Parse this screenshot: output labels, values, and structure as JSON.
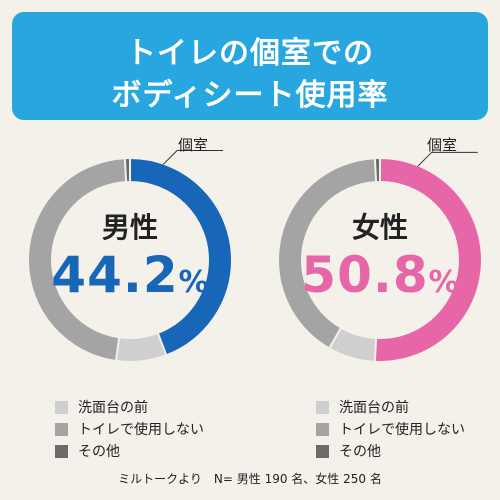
{
  "banner": {
    "line1": "トイレの個室での",
    "line2": "ボディシート使用率"
  },
  "colors": {
    "banner": "#27a6df",
    "male": "#1766b8",
    "female": "#e666a8",
    "sink": "#cfcfcf",
    "no_toilet": "#a4a4a4",
    "other": "#6b6b6b"
  },
  "chart_data": [
    {
      "type": "pie",
      "title": "男性",
      "value_label": "44.2",
      "unit": "%",
      "callout": "個室",
      "slices": [
        {
          "label": "個室",
          "value": 44.2,
          "color": "#1766b8"
        },
        {
          "label": "洗面台の前",
          "value": 8.0,
          "color": "#cfcfcf"
        },
        {
          "label": "トイレで使用しない",
          "value": 47.0,
          "color": "#a4a4a4"
        },
        {
          "label": "その他",
          "value": 0.8,
          "color": "#6b6b6b"
        }
      ]
    },
    {
      "type": "pie",
      "title": "女性",
      "value_label": "50.8",
      "unit": "%",
      "callout": "個室",
      "slices": [
        {
          "label": "個室",
          "value": 50.8,
          "color": "#e666a8"
        },
        {
          "label": "洗面台の前",
          "value": 7.5,
          "color": "#cfcfcf"
        },
        {
          "label": "トイレで使用しない",
          "value": 40.9,
          "color": "#a4a4a4"
        },
        {
          "label": "その他",
          "value": 0.8,
          "color": "#6b6b6b"
        }
      ]
    }
  ],
  "legend": [
    {
      "label": "洗面台の前",
      "color": "#cfcfcf"
    },
    {
      "label": "トイレで使用しない",
      "color": "#a4a4a4"
    },
    {
      "label": "その他",
      "color": "#6b6b6b"
    }
  ],
  "source": "ミルトークより　N= 男性 190 名、女性 250 名"
}
